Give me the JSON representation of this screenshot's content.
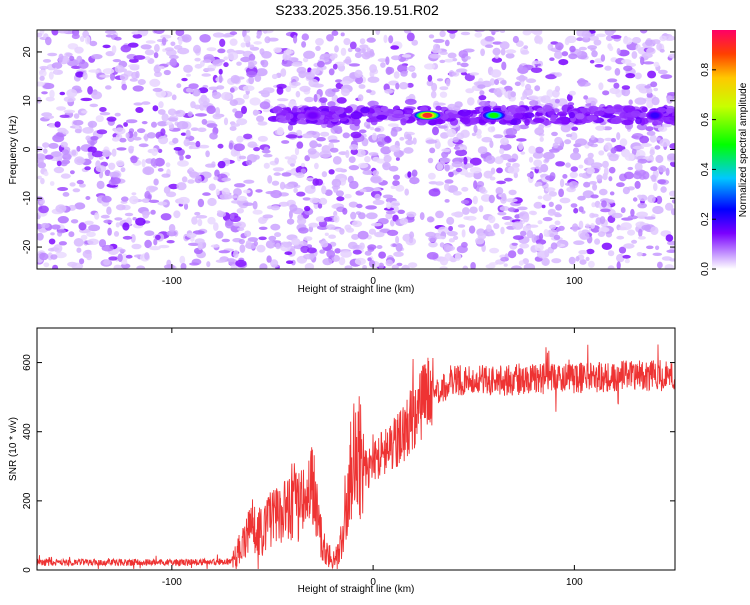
{
  "title": "S233.2025.356.19.51.R02",
  "chart_data": [
    {
      "id": "spectrogram",
      "type": "heatmap",
      "xlabel": "Height of straight line (km)",
      "ylabel": "Frequency (Hz)",
      "xlim": [
        -167,
        150
      ],
      "ylim": [
        -24.5,
        24.5
      ],
      "xticks": [
        -100,
        0,
        100
      ],
      "xtick_labels": [
        "-100",
        "0",
        "100"
      ],
      "yticks": [
        -20,
        -10,
        0,
        10,
        20
      ],
      "ytick_labels": [
        "-20",
        "-10",
        "0",
        "10",
        "20"
      ],
      "signal_band_frequency": 7,
      "gap_region": [
        21,
        28
      ],
      "peak_regions": [
        {
          "x": 27,
          "amplitude": 0.9
        },
        {
          "x": 60,
          "amplitude": 0.5
        },
        {
          "x": -30,
          "amplitude": 0.15
        },
        {
          "x": 140,
          "amplitude": 0.2
        }
      ],
      "colorbar": {
        "label": "Normalized spectral amplitude",
        "range": [
          0,
          0.96
        ],
        "ticks": [
          0.0,
          0.2,
          0.4,
          0.6,
          0.8
        ],
        "tick_labels": [
          "0.0",
          "0.2",
          "0.4",
          "0.6",
          "0.8"
        ]
      }
    },
    {
      "id": "snr",
      "type": "line",
      "xlabel": "Height of straight line (km)",
      "ylabel": "SNR (10 * v/v)",
      "xlim": [
        -167,
        150
      ],
      "ylim": [
        0,
        700
      ],
      "xticks": [
        -100,
        0,
        100
      ],
      "xtick_labels": [
        "-100",
        "0",
        "100"
      ],
      "yticks": [
        0,
        200,
        400,
        600
      ],
      "ytick_labels": [
        "0",
        "200",
        "400",
        "600"
      ],
      "color": "#ee3333",
      "series": [
        {
          "name": "SNR",
          "x": [
            -167,
            -150,
            -120,
            -90,
            -70,
            -65,
            -60,
            -55,
            -50,
            -45,
            -40,
            -35,
            -30,
            -27,
            -24,
            -20,
            -15,
            -12,
            -10,
            -7,
            -5,
            -2,
            0,
            5,
            10,
            15,
            20,
            25,
            30,
            35,
            40,
            50,
            60,
            70,
            80,
            90,
            100,
            110,
            120,
            130,
            140,
            150
          ],
          "y": [
            22,
            22,
            22,
            22,
            24,
            80,
            120,
            110,
            160,
            150,
            210,
            180,
            250,
            120,
            60,
            30,
            80,
            260,
            320,
            330,
            300,
            290,
            330,
            340,
            360,
            400,
            440,
            490,
            520,
            530,
            550,
            550,
            548,
            550,
            553,
            555,
            556,
            557,
            560,
            562,
            563,
            560
          ]
        }
      ]
    }
  ]
}
